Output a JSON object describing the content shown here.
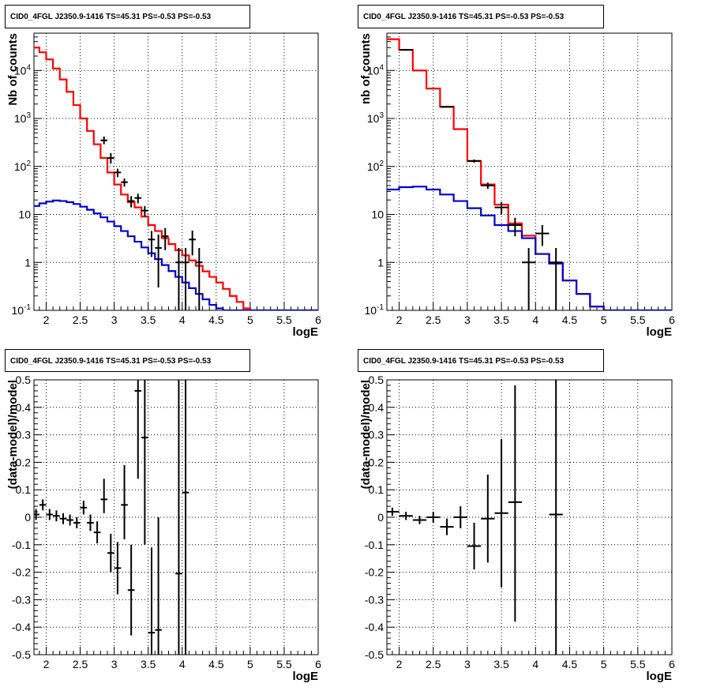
{
  "chart_data": [
    {
      "type": "line",
      "panel": "top-left",
      "title": "CID0_4FGL J2350.9-1416 TS=45.31 PS=-0.53 PS=-0.53",
      "xlabel": "logE",
      "ylabel": "Nb of counts",
      "xlim": [
        1.82,
        6.0
      ],
      "ylim": [
        0.1,
        60000
      ],
      "yscale": "log",
      "grid": true,
      "x_ticks": [
        "2",
        "2.5",
        "3",
        "3.5",
        "4",
        "4.5",
        "5",
        "5.5",
        "6"
      ],
      "y_ticks": [
        "10^-1",
        "1",
        "10",
        "10^2",
        "10^3",
        "10^4"
      ],
      "bin_width": 0.1,
      "series": [
        {
          "color": "#ff0000",
          "style": "step",
          "x": [
            1.8,
            1.9,
            2.0,
            2.1,
            2.2,
            2.3,
            2.4,
            2.5,
            2.6,
            2.7,
            2.8,
            2.9,
            3.0,
            3.1,
            3.2,
            3.3,
            3.4,
            3.5,
            3.6,
            3.7,
            3.8,
            3.9,
            4.0,
            4.1,
            4.2,
            4.3,
            4.4,
            4.5,
            4.6,
            4.7,
            4.8,
            4.9,
            5.0,
            5.1,
            5.2,
            5.3,
            5.4,
            5.5,
            5.6,
            5.7,
            5.8,
            5.9,
            6.0
          ],
          "values": [
            30000,
            24000,
            17000,
            11000,
            6500,
            3600,
            1900,
            1000,
            550,
            290,
            150,
            75,
            42,
            26,
            18,
            14,
            9,
            6,
            4.5,
            3.2,
            2.4,
            1.8,
            1.4,
            1.1,
            0.85,
            0.65,
            0.5,
            0.38,
            0.28,
            0.2,
            0.15,
            0.11,
            0.1,
            0.1,
            0.1,
            0.1,
            0.1,
            0.1,
            0.1,
            0.1,
            0.1,
            0.1,
            0.1
          ]
        },
        {
          "color": "#0000cc",
          "style": "step",
          "x": [
            1.8,
            1.9,
            2.0,
            2.1,
            2.2,
            2.3,
            2.4,
            2.5,
            2.6,
            2.7,
            2.8,
            2.9,
            3.0,
            3.1,
            3.2,
            3.3,
            3.4,
            3.5,
            3.6,
            3.7,
            3.8,
            3.9,
            4.0,
            4.1,
            4.2,
            4.3,
            4.4,
            4.5,
            4.6,
            4.7,
            4.8,
            4.9,
            5.0,
            5.1,
            5.2,
            5.3,
            5.4,
            5.5,
            5.6,
            5.7,
            5.8,
            5.9,
            6.0
          ],
          "values": [
            15,
            17,
            18.5,
            19.5,
            19,
            18,
            16.5,
            14.5,
            12.5,
            10.5,
            8.7,
            7.1,
            5.7,
            4.5,
            3.5,
            2.7,
            2.05,
            1.55,
            1.17,
            0.88,
            0.66,
            0.5,
            0.38,
            0.29,
            0.22,
            0.17,
            0.13,
            0.11,
            0.1,
            0.1,
            0.1,
            0.1,
            0.1,
            0.1,
            0.1,
            0.1,
            0.1,
            0.1,
            0.1,
            0.1,
            0.1,
            0.1,
            0.1
          ]
        },
        {
          "color": "#000000",
          "style": "errorbar",
          "points": [
            {
              "x": 2.85,
              "y": 350,
              "lo": 290,
              "hi": 420
            },
            {
              "x": 2.95,
              "y": 150,
              "lo": 115,
              "hi": 190
            },
            {
              "x": 3.05,
              "y": 75,
              "lo": 60,
              "hi": 90
            },
            {
              "x": 3.15,
              "y": 47,
              "lo": 38,
              "hi": 56
            },
            {
              "x": 3.25,
              "y": 19,
              "lo": 14,
              "hi": 24
            },
            {
              "x": 3.35,
              "y": 22,
              "lo": 17,
              "hi": 27
            },
            {
              "x": 3.45,
              "y": 12,
              "lo": 9,
              "hi": 15
            },
            {
              "x": 3.55,
              "y": 3,
              "lo": 1.3,
              "hi": 4.5
            },
            {
              "x": 3.65,
              "y": 2,
              "lo": 0.3,
              "hi": 3.8
            },
            {
              "x": 3.75,
              "y": 3.5,
              "lo": 1.8,
              "hi": 5.2
            },
            {
              "x": 3.95,
              "y": 1.0,
              "lo": 0.1,
              "hi": 2.0
            },
            {
              "x": 4.05,
              "y": 1.0,
              "lo": 0.1,
              "hi": 2.0
            },
            {
              "x": 4.15,
              "y": 3,
              "lo": 1.4,
              "hi": 4.6
            },
            {
              "x": 4.25,
              "y": 1.0,
              "lo": 0.1,
              "hi": 2.0
            }
          ]
        }
      ]
    },
    {
      "type": "line",
      "panel": "top-right",
      "title": "CID0_4FGL J2350.9-1416 TS=45.31 PS=-0.53 PS=-0.53",
      "xlabel": "logE",
      "ylabel": "nb of counts",
      "xlim": [
        1.82,
        6.0
      ],
      "ylim": [
        0.1,
        60000
      ],
      "yscale": "log",
      "grid": true,
      "x_ticks": [
        "2",
        "2.5",
        "3",
        "3.5",
        "4",
        "4.5",
        "5",
        "5.5",
        "6"
      ],
      "y_ticks": [
        "10^-1",
        "1",
        "10",
        "10^2",
        "10^3",
        "10^4"
      ],
      "bin_width": 0.2,
      "series": [
        {
          "color": "#ff0000",
          "style": "step",
          "x": [
            1.8,
            2.0,
            2.2,
            2.4,
            2.6,
            2.8,
            3.0,
            3.2,
            3.4,
            3.6,
            3.8,
            4.0,
            4.2,
            4.4,
            4.6,
            4.8,
            5.0,
            5.2,
            5.4,
            5.6,
            5.8,
            6.0
          ],
          "values": [
            45000,
            27000,
            10000,
            4200,
            1750,
            600,
            130,
            42,
            16,
            6.5,
            3.6,
            1.5,
            0.95,
            0.42,
            0.22,
            0.12,
            0.1,
            0.1,
            0.1,
            0.1,
            0.1,
            0.1
          ]
        },
        {
          "color": "#0000cc",
          "style": "step",
          "x": [
            1.8,
            2.0,
            2.2,
            2.4,
            2.6,
            2.8,
            3.0,
            3.2,
            3.4,
            3.6,
            3.8,
            4.0,
            4.2,
            4.4,
            4.6,
            4.8,
            5.0,
            5.2,
            5.4,
            5.6,
            5.8,
            6.0
          ],
          "values": [
            33,
            37,
            38,
            33,
            26,
            19,
            13.5,
            9.5,
            6,
            4.5,
            3.2,
            1.5,
            0.95,
            0.42,
            0.22,
            0.12,
            0.1,
            0.1,
            0.1,
            0.1,
            0.1,
            0.1
          ]
        },
        {
          "color": "#000000",
          "style": "errorbar",
          "points": [
            {
              "x": 2.1,
              "y": 27000,
              "lo": 26500,
              "hi": 27500
            },
            {
              "x": 2.7,
              "y": 1750,
              "lo": 1700,
              "hi": 1800
            },
            {
              "x": 3.1,
              "y": 130,
              "lo": 120,
              "hi": 140
            },
            {
              "x": 3.3,
              "y": 40,
              "lo": 34,
              "hi": 46
            },
            {
              "x": 3.5,
              "y": 14,
              "lo": 10,
              "hi": 18
            },
            {
              "x": 3.7,
              "y": 6,
              "lo": 3.5,
              "hi": 8.5
            },
            {
              "x": 3.9,
              "y": 1.0,
              "lo": 0.1,
              "hi": 2.0
            },
            {
              "x": 4.1,
              "y": 4,
              "lo": 2.2,
              "hi": 6
            },
            {
              "x": 4.3,
              "y": 1.0,
              "lo": 0.1,
              "hi": 2.0
            }
          ]
        }
      ]
    },
    {
      "type": "scatter",
      "panel": "bottom-left",
      "title": "CID0_4FGL J2350.9-1416 TS=45.31 PS=-0.53 PS=-0.53",
      "xlabel": "logE",
      "ylabel": "(data-model)/model",
      "xlim": [
        1.82,
        6.0
      ],
      "ylim": [
        -0.5,
        0.5
      ],
      "grid": true,
      "x_ticks": [
        "2",
        "2.5",
        "3",
        "3.5",
        "4",
        "4.5",
        "5",
        "5.5",
        "6"
      ],
      "y_ticks": [
        "-0.5",
        "-0.4",
        "-0.3",
        "-0.2",
        "-0.1",
        "0",
        "0.1",
        "0.2",
        "0.3",
        "0.4",
        "0.5"
      ],
      "bin_width": 0.1,
      "series": [
        {
          "color": "#000000",
          "style": "errorbar",
          "points": [
            {
              "x": 1.85,
              "y": 0.01,
              "lo": -0.01,
              "hi": 0.03
            },
            {
              "x": 1.95,
              "y": 0.045,
              "lo": 0.025,
              "hi": 0.065
            },
            {
              "x": 2.05,
              "y": 0.01,
              "lo": -0.01,
              "hi": 0.03
            },
            {
              "x": 2.15,
              "y": 0.005,
              "lo": -0.015,
              "hi": 0.025
            },
            {
              "x": 2.25,
              "y": -0.005,
              "lo": -0.025,
              "hi": 0.015
            },
            {
              "x": 2.35,
              "y": -0.01,
              "lo": -0.03,
              "hi": 0.01
            },
            {
              "x": 2.45,
              "y": -0.02,
              "lo": -0.04,
              "hi": 0.0
            },
            {
              "x": 2.55,
              "y": 0.035,
              "lo": 0.01,
              "hi": 0.06
            },
            {
              "x": 2.65,
              "y": -0.02,
              "lo": -0.05,
              "hi": 0.01
            },
            {
              "x": 2.75,
              "y": -0.055,
              "lo": -0.095,
              "hi": -0.015
            },
            {
              "x": 2.85,
              "y": 0.065,
              "lo": 0.015,
              "hi": 0.14
            },
            {
              "x": 2.95,
              "y": -0.13,
              "lo": -0.2,
              "hi": -0.06
            },
            {
              "x": 3.05,
              "y": -0.185,
              "lo": -0.28,
              "hi": -0.09
            },
            {
              "x": 3.15,
              "y": 0.045,
              "lo": -0.08,
              "hi": 0.19
            },
            {
              "x": 3.25,
              "y": -0.265,
              "lo": -0.43,
              "hi": -0.1
            },
            {
              "x": 3.35,
              "y": 0.46,
              "lo": 0.14,
              "hi": 0.5
            },
            {
              "x": 3.45,
              "y": 0.29,
              "lo": -0.1,
              "hi": 0.5
            },
            {
              "x": 3.55,
              "y": -0.42,
              "lo": -0.5,
              "hi": -0.11
            },
            {
              "x": 3.65,
              "y": -0.41,
              "lo": -0.5,
              "hi": 0.0
            },
            {
              "x": 3.95,
              "y": -0.205,
              "lo": -0.5,
              "hi": 0.5
            },
            {
              "x": 4.05,
              "y": 0.09,
              "lo": -0.5,
              "hi": 0.5
            }
          ]
        }
      ]
    },
    {
      "type": "scatter",
      "panel": "bottom-right",
      "title": "CID0_4FGL J2350.9-1416 TS=45.31 PS=-0.53 PS=-0.53",
      "xlabel": "logE",
      "ylabel": "(data-model)/model",
      "xlim": [
        1.82,
        6.0
      ],
      "ylim": [
        -0.5,
        0.5
      ],
      "grid": true,
      "x_ticks": [
        "2",
        "2.5",
        "3",
        "3.5",
        "4",
        "4.5",
        "5",
        "5.5",
        "6"
      ],
      "y_ticks": [
        "-0.5",
        "-0.4",
        "-0.3",
        "-0.2",
        "-0.1",
        "0",
        "0.1",
        "0.2",
        "0.3",
        "0.4",
        "0.5"
      ],
      "bin_width": 0.2,
      "series": [
        {
          "color": "#000000",
          "style": "errorbar",
          "points": [
            {
              "x": 1.9,
              "y": 0.02,
              "lo": 0.005,
              "hi": 0.035
            },
            {
              "x": 2.1,
              "y": 0.005,
              "lo": -0.01,
              "hi": 0.02
            },
            {
              "x": 2.3,
              "y": -0.01,
              "lo": -0.025,
              "hi": 0.005
            },
            {
              "x": 2.5,
              "y": 0.0,
              "lo": -0.02,
              "hi": 0.02
            },
            {
              "x": 2.7,
              "y": -0.035,
              "lo": -0.065,
              "hi": -0.005
            },
            {
              "x": 2.9,
              "y": 0.0,
              "lo": -0.04,
              "hi": 0.04
            },
            {
              "x": 3.1,
              "y": -0.105,
              "lo": -0.19,
              "hi": -0.02
            },
            {
              "x": 3.3,
              "y": -0.005,
              "lo": -0.165,
              "hi": 0.155
            },
            {
              "x": 3.5,
              "y": 0.015,
              "lo": -0.255,
              "hi": 0.285
            },
            {
              "x": 3.7,
              "y": 0.055,
              "lo": -0.38,
              "hi": 0.48
            },
            {
              "x": 4.3,
              "y": 0.01,
              "lo": -0.5,
              "hi": 0.5
            }
          ]
        }
      ]
    }
  ]
}
